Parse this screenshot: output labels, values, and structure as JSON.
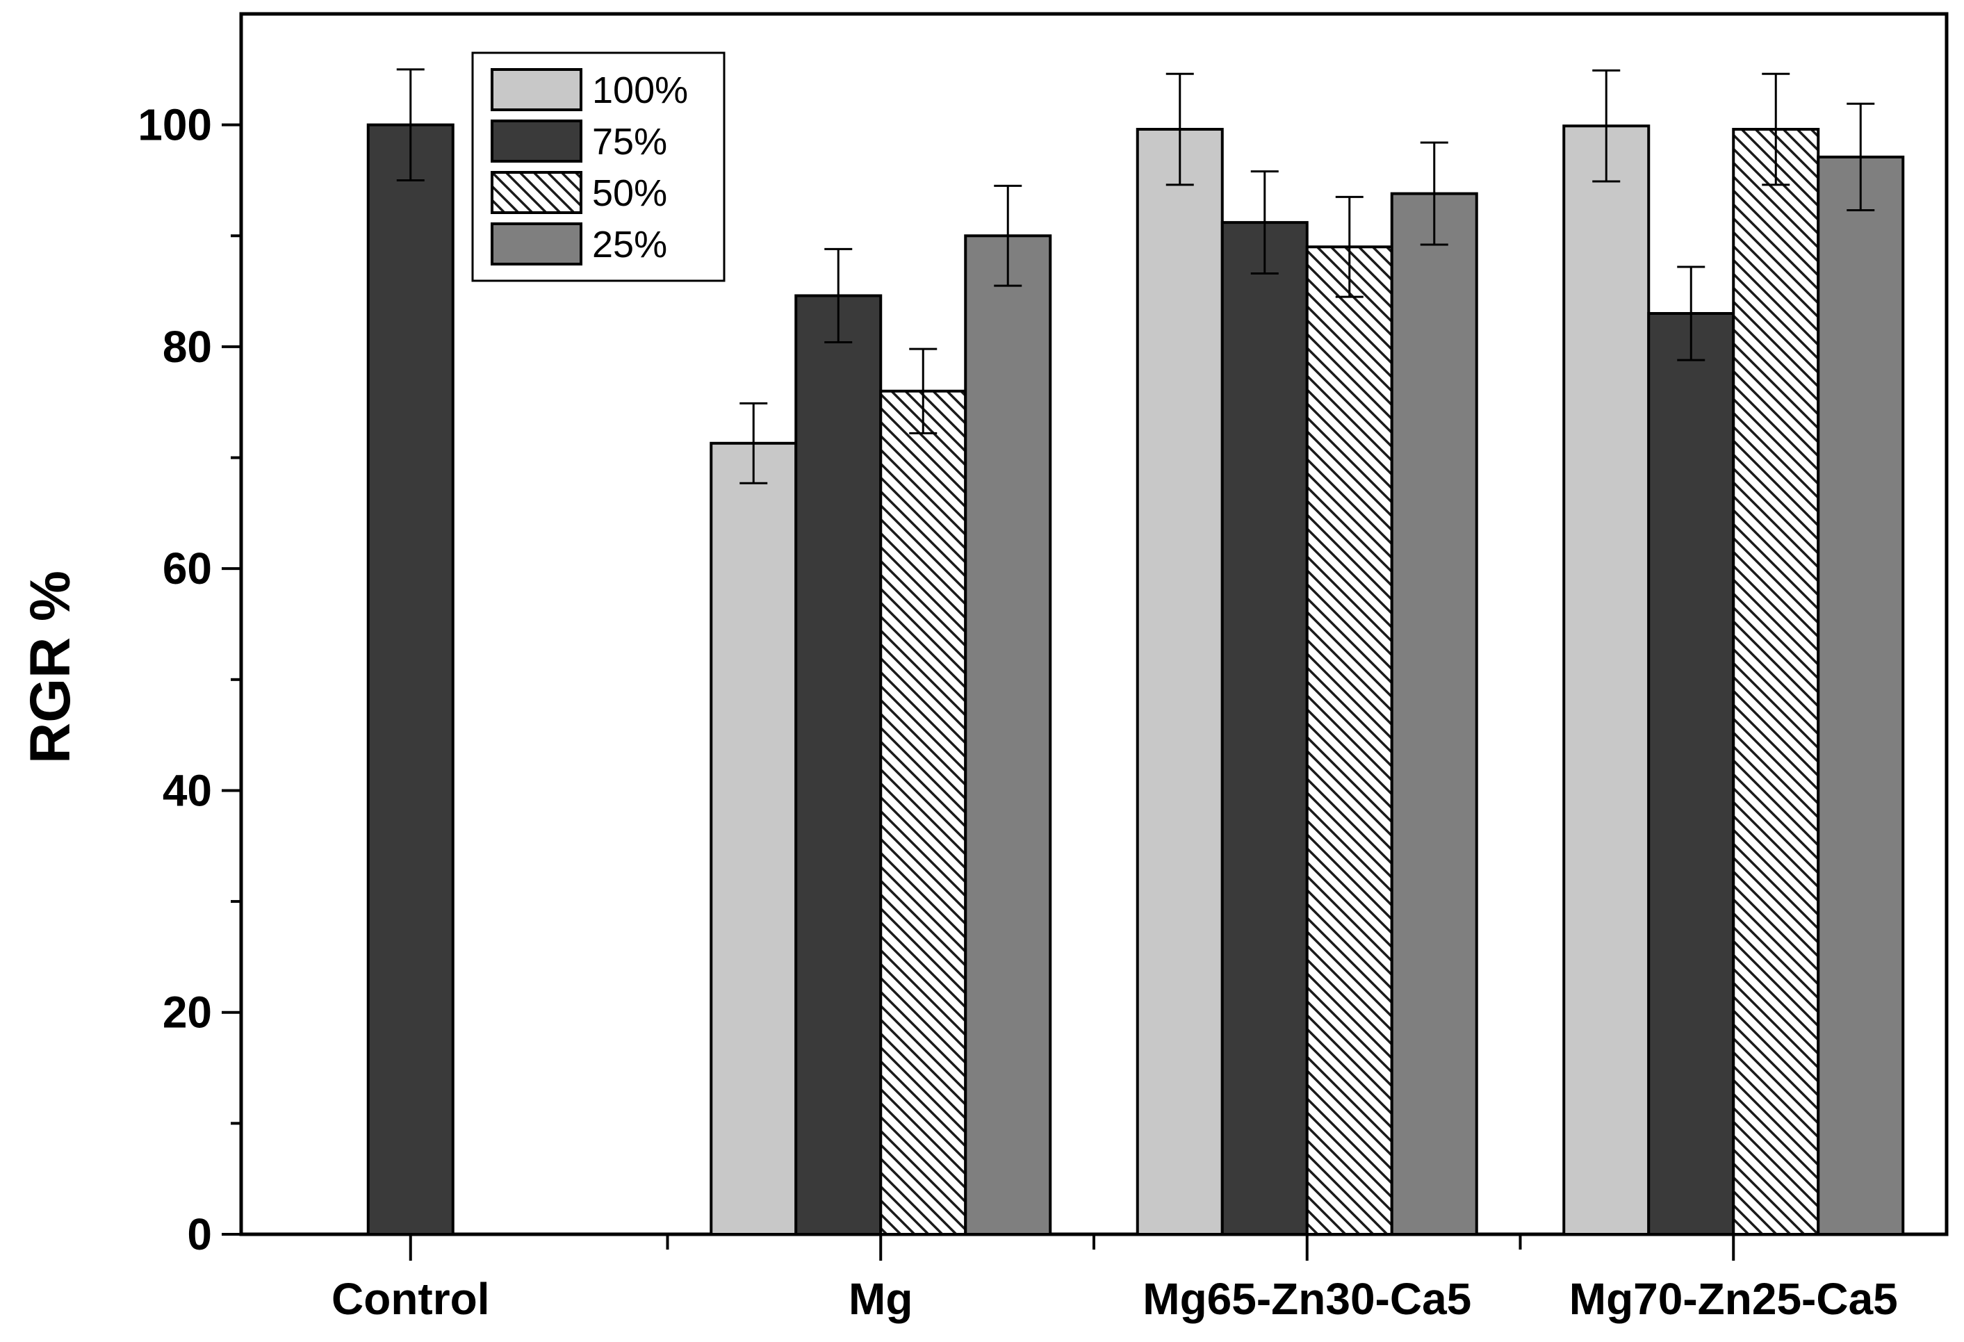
{
  "chart_data": {
    "type": "bar",
    "title": "",
    "xlabel": "",
    "ylabel": "RGR %",
    "ylim": [
      0,
      110
    ],
    "yticks": [
      0,
      20,
      40,
      60,
      80,
      100
    ],
    "ytick_labels": [
      "0",
      "20",
      "40",
      "60",
      "80",
      "100"
    ],
    "categories": [
      "Control",
      "Mg",
      "Mg65-Zn30-Ca5",
      "Mg70-Zn25-Ca5"
    ],
    "legend_position": "top-left",
    "series": [
      {
        "name": "100%",
        "color": "#c8c8c8",
        "pattern": "solid",
        "values": [
          null,
          71.3,
          99.6,
          99.9
        ],
        "errors": [
          null,
          3.6,
          5.0,
          5.0
        ]
      },
      {
        "name": "75%",
        "color": "#3a3a3a",
        "pattern": "solid",
        "values": [
          100.0,
          84.6,
          91.2,
          83.0
        ],
        "errors": [
          5.0,
          4.2,
          4.6,
          4.2
        ]
      },
      {
        "name": "50%",
        "color": "#ffffff",
        "pattern": "hatch",
        "values": [
          null,
          76.0,
          89.0,
          99.6
        ],
        "errors": [
          null,
          3.8,
          4.5,
          5.0
        ]
      },
      {
        "name": "25%",
        "color": "#7f7f7f",
        "pattern": "solid",
        "values": [
          null,
          90.0,
          93.8,
          97.1
        ],
        "errors": [
          null,
          4.5,
          4.6,
          4.8
        ]
      }
    ]
  }
}
